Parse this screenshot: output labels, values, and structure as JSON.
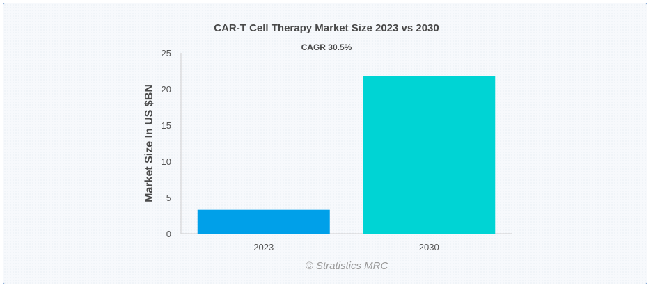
{
  "colors": {
    "bar_2023": "#00a0e9",
    "bar_2030": "#00d4d4",
    "frame_border": "#4a7fc1",
    "axis": "#d0d0d0"
  },
  "chart_data": {
    "type": "bar",
    "title": "CAR-T Cell Therapy Market Size 2023 vs 2030",
    "subtitle": "CAGR 30.5%",
    "xlabel": "",
    "ylabel": "Market Size In US $BN",
    "categories": [
      "2023",
      "2030"
    ],
    "values": [
      3.3,
      21.8
    ],
    "ylim": [
      0,
      25
    ],
    "yticks": [
      0,
      5,
      10,
      15,
      20,
      25
    ],
    "ytick_labels": [
      "0",
      "5",
      "10",
      "15",
      "20",
      "25"
    ],
    "grid": false,
    "legend": "none"
  },
  "watermark": "© Stratistics MRC"
}
